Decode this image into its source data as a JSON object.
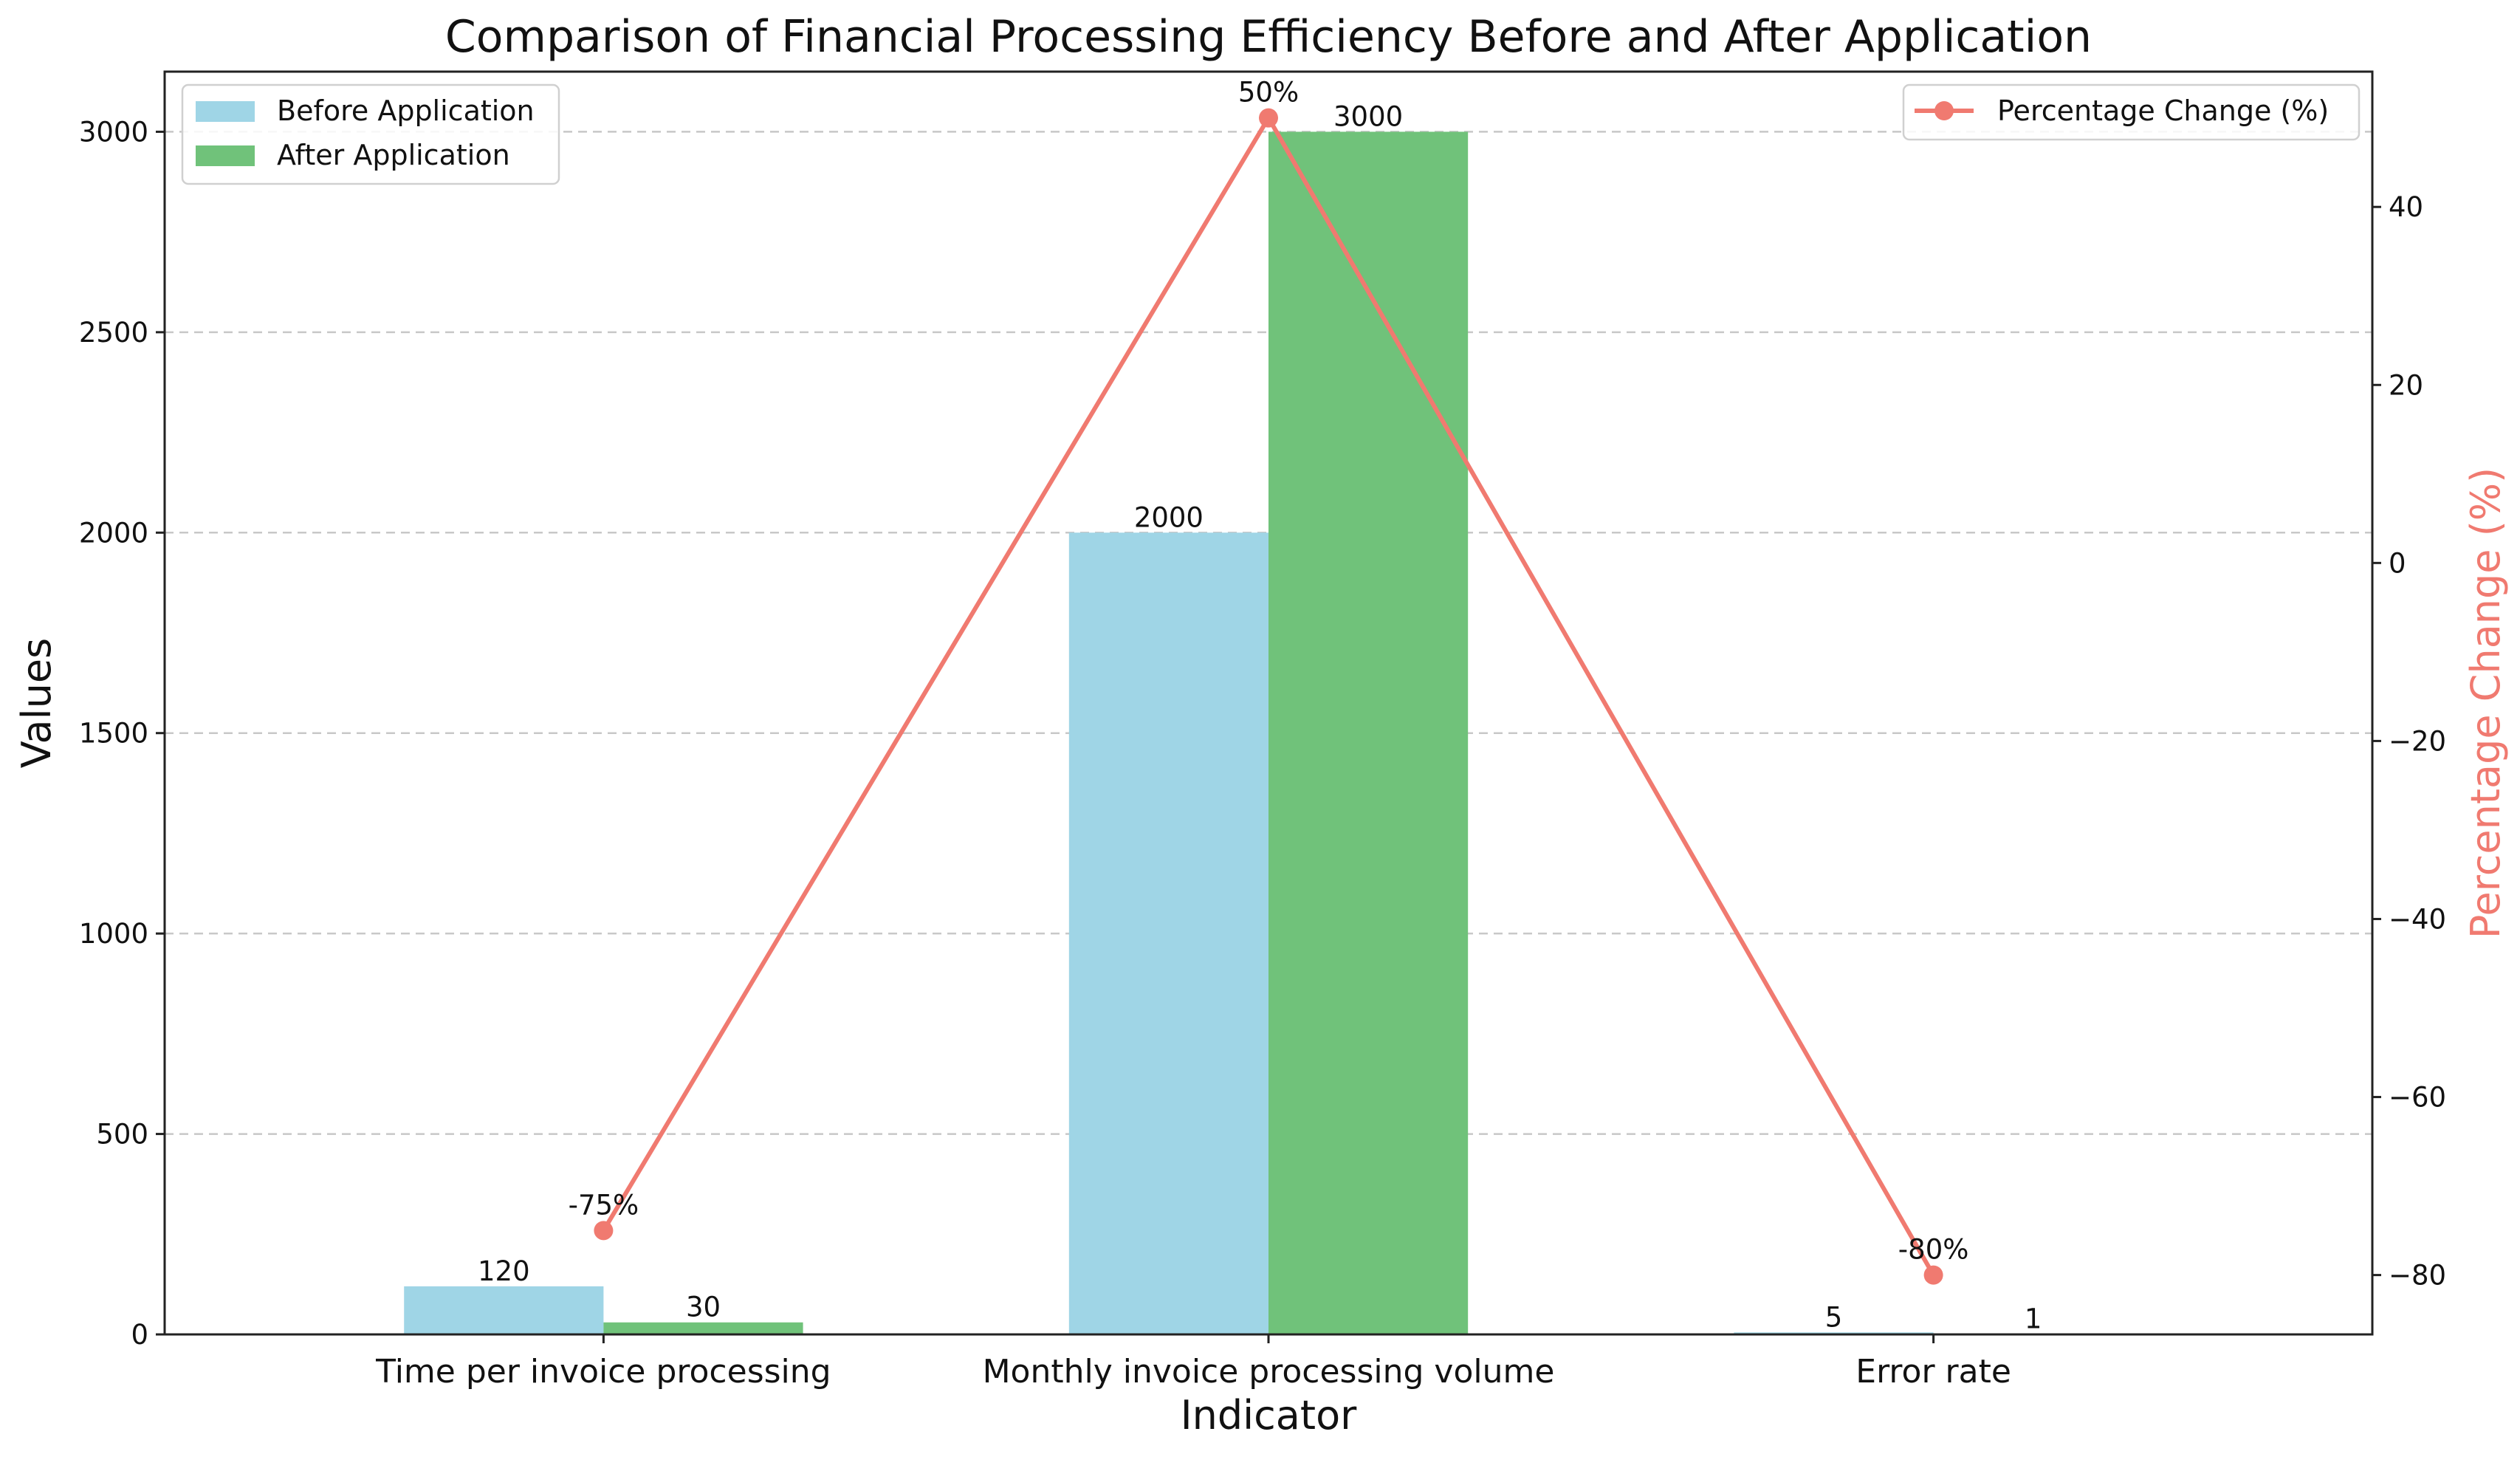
{
  "chart_data": {
    "type": "bar",
    "title": "Comparison of Financial Processing Efficiency Before and After Application",
    "xlabel": "Indicator",
    "ylabel": "Values",
    "y2label": "Percentage Change (%)",
    "categories": [
      "Time per invoice processing",
      "Monthly invoice processing volume",
      "Error rate"
    ],
    "series": [
      {
        "name": "Before Application",
        "values": [
          120,
          2000,
          5
        ],
        "color": "#9fd5e6"
      },
      {
        "name": "After Application",
        "values": [
          30,
          3000,
          1
        ],
        "color": "#70c27a"
      }
    ],
    "line_series": {
      "name": "Percentage Change (%)",
      "values": [
        -75,
        50,
        -80
      ],
      "labels": [
        "-75%",
        "50%",
        "-80%"
      ],
      "color": "#f07a70"
    },
    "ylim": [
      0,
      3150
    ],
    "y_ticks": [
      0,
      500,
      1000,
      1500,
      2000,
      2500,
      3000
    ],
    "y2lim": [
      -86.67,
      55.2
    ],
    "y2_ticks": [
      -80,
      -60,
      -40,
      -20,
      0,
      20,
      40
    ],
    "grid": true,
    "legend_bars_position": "top-left",
    "legend_line_position": "top-right"
  }
}
